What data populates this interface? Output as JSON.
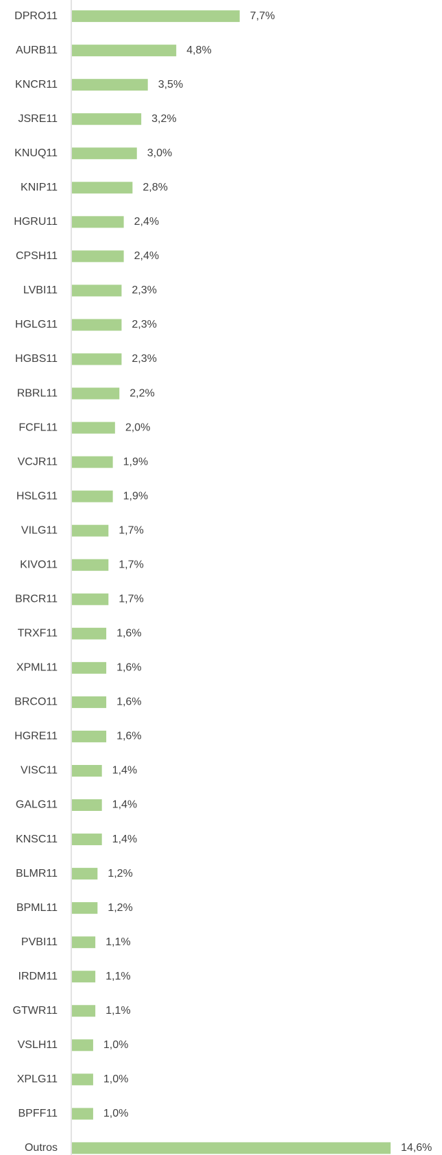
{
  "chart_data": {
    "type": "barh",
    "categories": [
      "DPRO11",
      "AURB11",
      "KNCR11",
      "JSRE11",
      "KNUQ11",
      "KNIP11",
      "HGRU11",
      "CPSH11",
      "LVBI11",
      "HGLG11",
      "HGBS11",
      "RBRL11",
      "FCFL11",
      "VCJR11",
      "HSLG11",
      "VILG11",
      "KIVO11",
      "BRCR11",
      "TRXF11",
      "XPML11",
      "BRCO11",
      "HGRE11",
      "VISC11",
      "GALG11",
      "KNSC11",
      "BLMR11",
      "BPML11",
      "PVBI11",
      "IRDM11",
      "GTWR11",
      "VSLH11",
      "XPLG11",
      "BPFF11",
      "Outros"
    ],
    "values": [
      7.7,
      4.8,
      3.5,
      3.2,
      3.0,
      2.8,
      2.4,
      2.4,
      2.3,
      2.3,
      2.3,
      2.2,
      2.0,
      1.9,
      1.9,
      1.7,
      1.7,
      1.7,
      1.6,
      1.6,
      1.6,
      1.6,
      1.4,
      1.4,
      1.4,
      1.2,
      1.2,
      1.1,
      1.1,
      1.1,
      1.0,
      1.0,
      1.0,
      14.6
    ],
    "value_labels": [
      "7,7%",
      "4,8%",
      "3,5%",
      "3,2%",
      "3,0%",
      "2,8%",
      "2,4%",
      "2,4%",
      "2,3%",
      "2,3%",
      "2,3%",
      "2,2%",
      "2,0%",
      "1,9%",
      "1,9%",
      "1,7%",
      "1,7%",
      "1,7%",
      "1,6%",
      "1,6%",
      "1,6%",
      "1,6%",
      "1,4%",
      "1,4%",
      "1,4%",
      "1,2%",
      "1,2%",
      "1,1%",
      "1,1%",
      "1,1%",
      "1,0%",
      "1,0%",
      "1,0%",
      "14,6%"
    ],
    "color": "#a9d18e"
  }
}
